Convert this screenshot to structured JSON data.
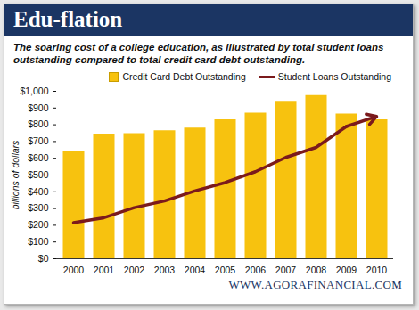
{
  "chart_data": {
    "type": "bar",
    "title": "Edu-flation",
    "subtitle": "The soaring cost of a college education, as illustrated by total student loans outstanding compared to total credit card debt outstanding.",
    "footer": "WWW.AGORAFINANCIAL.COM",
    "y_label": "billions of dollars",
    "categories": [
      "2000",
      "2001",
      "2002",
      "2003",
      "2004",
      "2005",
      "2006",
      "2007",
      "2008",
      "2009",
      "2010"
    ],
    "series": [
      {
        "name": "Credit Card Debt Outstanding",
        "type": "bar",
        "color": "#f7c20f",
        "values": [
          640,
          745,
          748,
          765,
          780,
          830,
          870,
          940,
          975,
          865,
          830
        ]
      },
      {
        "name": "Student Loans Outstanding",
        "type": "line",
        "color": "#7b1a1c",
        "marker": "arrow",
        "values": [
          215,
          245,
          305,
          345,
          405,
          455,
          520,
          605,
          665,
          790,
          850
        ]
      }
    ],
    "ylim": [
      0,
      1000
    ],
    "yticks": [
      {
        "value": 0,
        "label": "$0"
      },
      {
        "value": 100,
        "label": "$100"
      },
      {
        "value": 200,
        "label": "$200"
      },
      {
        "value": 300,
        "label": "$300"
      },
      {
        "value": 400,
        "label": "$400"
      },
      {
        "value": 500,
        "label": "$500"
      },
      {
        "value": 600,
        "label": "$600"
      },
      {
        "value": 700,
        "label": "$700"
      },
      {
        "value": 800,
        "label": "$800"
      },
      {
        "value": 900,
        "label": "$900"
      },
      {
        "value": 1000,
        "label": "$1,000"
      }
    ],
    "grid": false,
    "legend": "top"
  }
}
